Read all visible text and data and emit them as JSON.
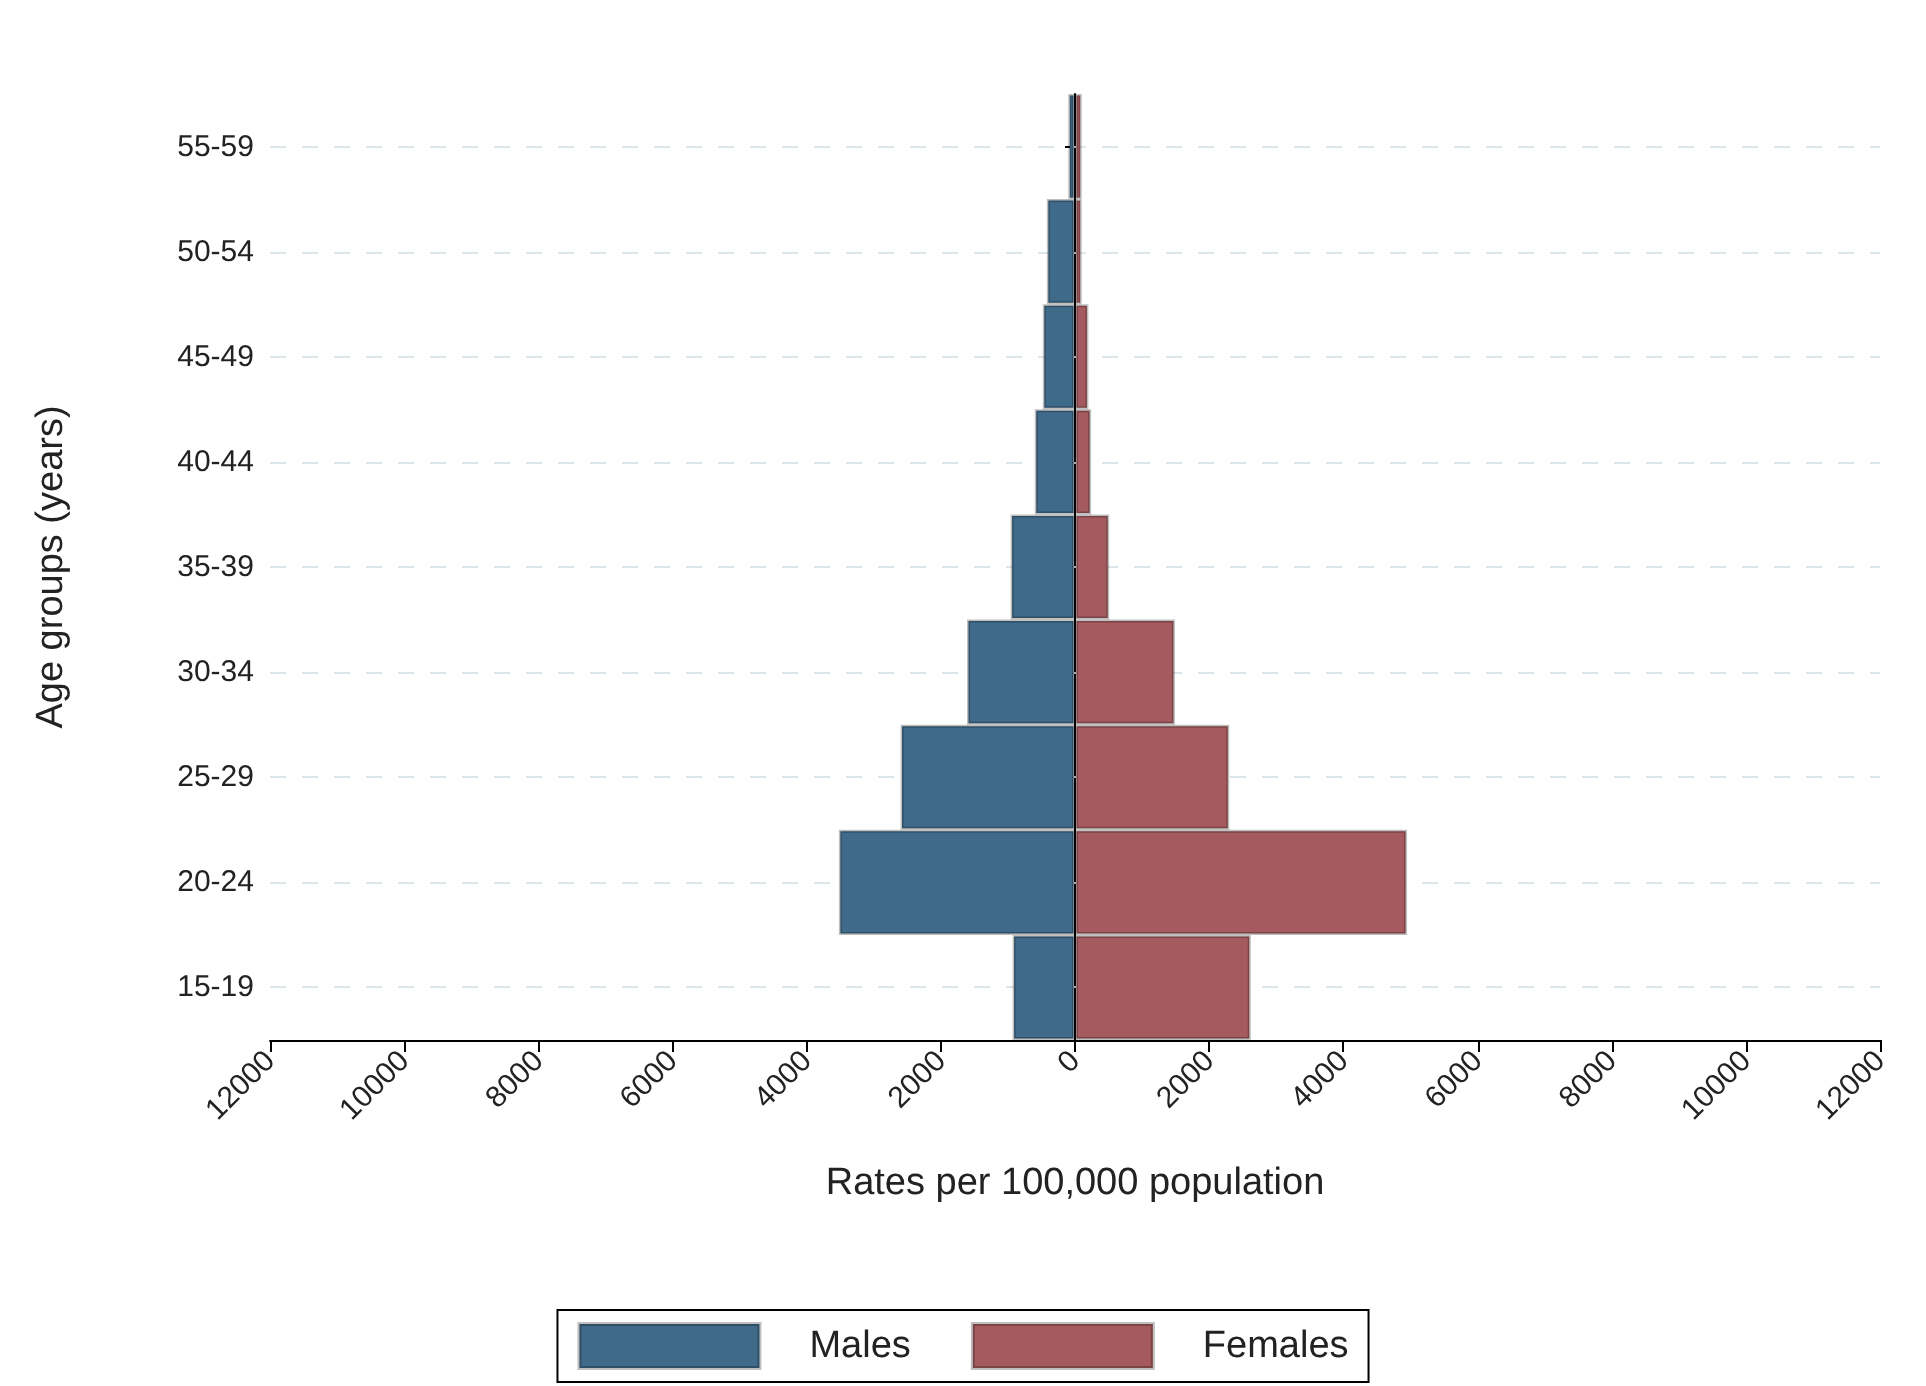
{
  "chart_data": {
    "type": "bar",
    "orientation": "horizontal",
    "xlabel": "Rates per 100,000 population",
    "ylabel": "Age groups (years)",
    "categories": [
      "55-59",
      "50-54",
      "45-49",
      "40-44",
      "35-39",
      "30-34",
      "25-29",
      "20-24",
      "15-19"
    ],
    "series": [
      {
        "name": "Males",
        "color": "#3f6a8a",
        "values": [
          -100,
          -420,
          -480,
          -600,
          -960,
          -1610,
          -2600,
          -3520,
          -930
        ]
      },
      {
        "name": "Females",
        "color": "#a45a5e",
        "values": [
          100,
          100,
          200,
          240,
          510,
          1490,
          2300,
          4950,
          2620
        ]
      }
    ],
    "xlim": [
      -12000,
      12000
    ],
    "xticks": [
      {
        "value": -12000,
        "label": "12000"
      },
      {
        "value": -10000,
        "label": "10000"
      },
      {
        "value": -8000,
        "label": "8000"
      },
      {
        "value": -6000,
        "label": "6000"
      },
      {
        "value": -4000,
        "label": "4000"
      },
      {
        "value": -2000,
        "label": "2000"
      },
      0,
      2000,
      4000,
      6000,
      8000,
      10000,
      12000
    ],
    "grid": "y",
    "legend": "bottom",
    "stacked": true
  }
}
